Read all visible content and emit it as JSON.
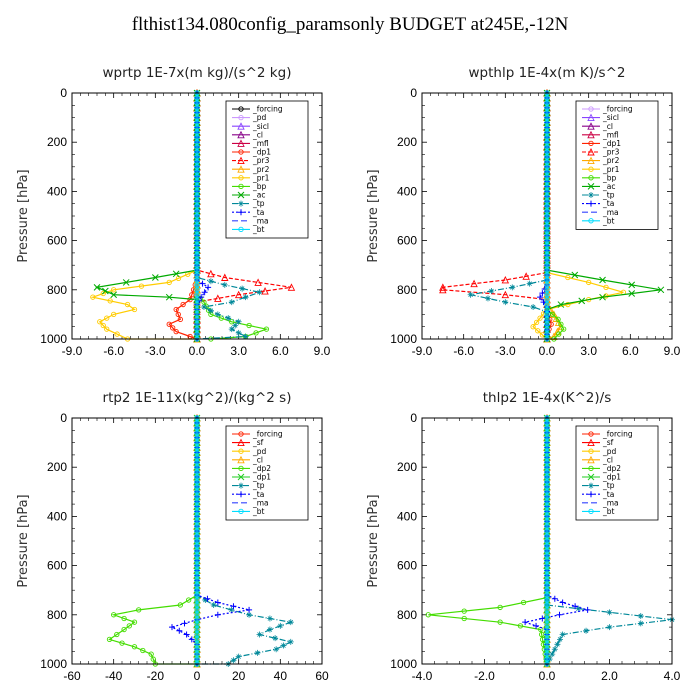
{
  "title": "flthist134.080config_paramsonly  BUDGET at245E,-12N",
  "chart_data": [
    {
      "type": "line",
      "title": "wprtp   1E-7x(m kg)/(s^2 kg)",
      "ylabel": "Pressure [hPa]",
      "xlim": [
        -9,
        9
      ],
      "ylim": [
        1000,
        0
      ],
      "xticks": [
        "-9.0",
        "-6.0",
        "-3.0",
        "0.0",
        "3.0",
        "6.0",
        "9.0"
      ],
      "yticks": [
        "0",
        "200",
        "400",
        "600",
        "800",
        "1000"
      ],
      "grid": false,
      "legend_position": "top-right",
      "series": [
        {
          "name": "_forcing",
          "color": "#000000",
          "marker": "circle",
          "dash": "",
          "x": [
            0,
            0
          ],
          "y": [
            0,
            1000
          ]
        },
        {
          "name": "_pd",
          "color": "#cc99ff",
          "marker": "circle",
          "dash": "",
          "x": [
            0,
            0
          ],
          "y": [
            0,
            1000
          ]
        },
        {
          "name": "_sicl",
          "color": "#8844ff",
          "marker": "triangle",
          "dash": "",
          "x": [
            0,
            0
          ],
          "y": [
            0,
            1000
          ]
        },
        {
          "name": "_cl",
          "color": "#880088",
          "marker": "triangle",
          "dash": "",
          "x": [
            0,
            0
          ],
          "y": [
            0,
            1000
          ]
        },
        {
          "name": "_mfl",
          "color": "#cc0044",
          "marker": "triangle",
          "dash": "",
          "x": [
            0,
            0
          ],
          "y": [
            0,
            1000
          ]
        },
        {
          "name": "_dp1",
          "color": "#ff2200",
          "marker": "circle",
          "dash": "",
          "x": [
            0,
            0,
            -0.5,
            -1.5,
            -1.2,
            -2,
            -1.5,
            -0.5,
            0
          ],
          "y": [
            0,
            760,
            840,
            880,
            920,
            940,
            970,
            990,
            1000
          ]
        },
        {
          "name": "_pr3",
          "color": "#ff0000",
          "marker": "triangle",
          "dash": "4,2",
          "x": [
            0,
            0,
            2,
            6.8,
            3,
            0,
            0
          ],
          "y": [
            0,
            720,
            750,
            790,
            820,
            850,
            1000
          ]
        },
        {
          "name": "_pr2",
          "color": "#ffaa00",
          "marker": "triangle",
          "dash": "",
          "x": [
            0,
            0,
            0,
            0
          ],
          "y": [
            0,
            500,
            800,
            1000
          ]
        },
        {
          "name": "_pr1",
          "color": "#ffcc00",
          "marker": "circle",
          "dash": "",
          "x": [
            0,
            0,
            -2,
            -6,
            -7.5,
            -5,
            -4.5,
            -6,
            -7,
            -6.5,
            -5,
            0
          ],
          "y": [
            0,
            720,
            770,
            800,
            830,
            860,
            880,
            900,
            930,
            960,
            1000,
            1000
          ]
        },
        {
          "name": "_bp",
          "color": "#44dd00",
          "marker": "circle",
          "dash": "",
          "x": [
            0,
            0,
            0.5,
            1,
            2.5,
            5,
            3.5,
            1
          ],
          "y": [
            0,
            820,
            850,
            900,
            930,
            960,
            990,
            1000
          ]
        },
        {
          "name": "_ac",
          "color": "#00aa00",
          "marker": "cross",
          "dash": "",
          "x": [
            0,
            0,
            -3,
            -7.2,
            -6,
            -2,
            0,
            0
          ],
          "y": [
            0,
            720,
            750,
            790,
            820,
            830,
            840,
            1000
          ]
        },
        {
          "name": "_tp",
          "color": "#008899",
          "marker": "star",
          "dash": "6,2,1,2",
          "x": [
            0,
            0,
            2,
            4.5,
            2.5,
            0.5,
            1.5,
            3,
            2.5,
            3.5,
            0
          ],
          "y": [
            0,
            750,
            780,
            810,
            850,
            870,
            900,
            930,
            960,
            990,
            1000
          ]
        },
        {
          "name": "_ta",
          "color": "#0000ff",
          "marker": "plus",
          "dash": "2,2",
          "x": [
            0,
            0,
            0.8,
            0.3,
            0,
            0
          ],
          "y": [
            0,
            760,
            790,
            830,
            860,
            1000
          ]
        },
        {
          "name": "_ma",
          "color": "#3344ff",
          "marker": "",
          "dash": "6,3",
          "x": [
            0,
            0
          ],
          "y": [
            0,
            1000
          ]
        },
        {
          "name": "_bt",
          "color": "#00ddff",
          "marker": "circle",
          "dash": "",
          "x": [
            0,
            0
          ],
          "y": [
            0,
            1000
          ]
        }
      ]
    },
    {
      "type": "line",
      "title": "wpthlp   1E-4x(m K)/s^2",
      "ylabel": "Pressure [hPa]",
      "xlim": [
        -9,
        9
      ],
      "ylim": [
        1000,
        0
      ],
      "xticks": [
        "-9.0",
        "-6.0",
        "-3.0",
        "0.0",
        "3.0",
        "6.0",
        "9.0"
      ],
      "yticks": [
        "0",
        "200",
        "400",
        "600",
        "800",
        "1000"
      ],
      "grid": false,
      "legend_position": "top-right",
      "series": [
        {
          "name": "_forcing",
          "color": "#cc99ff",
          "marker": "circle",
          "dash": "",
          "x": [
            0,
            0
          ],
          "y": [
            0,
            1000
          ]
        },
        {
          "name": "_sicl",
          "color": "#8844ff",
          "marker": "triangle",
          "dash": "",
          "x": [
            0,
            0
          ],
          "y": [
            0,
            1000
          ]
        },
        {
          "name": "_cl",
          "color": "#880088",
          "marker": "triangle",
          "dash": "",
          "x": [
            0,
            0
          ],
          "y": [
            0,
            1000
          ]
        },
        {
          "name": "_mfl",
          "color": "#cc0044",
          "marker": "triangle",
          "dash": "",
          "x": [
            0,
            0
          ],
          "y": [
            0,
            1000
          ]
        },
        {
          "name": "_dp1",
          "color": "#ff2200",
          "marker": "circle",
          "dash": "",
          "x": [
            0,
            0,
            0.3,
            0,
            0
          ],
          "y": [
            0,
            880,
            940,
            980,
            1000
          ]
        },
        {
          "name": "_pr3",
          "color": "#ff0000",
          "marker": "triangle",
          "dash": "4,2",
          "x": [
            0,
            0,
            -3,
            -7.5,
            -7.5,
            -3,
            0,
            0
          ],
          "y": [
            0,
            730,
            760,
            790,
            800,
            820,
            840,
            1000
          ]
        },
        {
          "name": "_pr2",
          "color": "#ffaa00",
          "marker": "triangle",
          "dash": "",
          "x": [
            0,
            0,
            0.5,
            1,
            0.5,
            0
          ],
          "y": [
            0,
            860,
            900,
            950,
            990,
            1000
          ]
        },
        {
          "name": "_pr1",
          "color": "#ffcc00",
          "marker": "circle",
          "dash": "",
          "x": [
            0,
            0,
            3,
            5.5,
            3,
            0,
            -1,
            0
          ],
          "y": [
            0,
            730,
            770,
            810,
            840,
            880,
            950,
            1000
          ]
        },
        {
          "name": "_bp",
          "color": "#44dd00",
          "marker": "circle",
          "dash": "",
          "x": [
            0,
            0,
            0.8,
            1.2,
            0.5
          ],
          "y": [
            0,
            880,
            920,
            960,
            1000
          ]
        },
        {
          "name": "_ac",
          "color": "#00aa00",
          "marker": "cross",
          "dash": "",
          "x": [
            0,
            0,
            4,
            8.2,
            4,
            1,
            0,
            0
          ],
          "y": [
            0,
            720,
            760,
            800,
            830,
            860,
            880,
            1000
          ]
        },
        {
          "name": "_tp",
          "color": "#008899",
          "marker": "star",
          "dash": "6,2,1,2",
          "x": [
            0,
            0,
            -2.5,
            -5.5,
            -3,
            -1,
            0,
            0
          ],
          "y": [
            0,
            760,
            790,
            820,
            850,
            870,
            890,
            1000
          ]
        },
        {
          "name": "_ta",
          "color": "#0000ff",
          "marker": "plus",
          "dash": "2,2",
          "x": [
            0,
            0,
            -0.5,
            0,
            0
          ],
          "y": [
            0,
            780,
            830,
            870,
            1000
          ]
        },
        {
          "name": "_ma",
          "color": "#3344ff",
          "marker": "",
          "dash": "6,3",
          "x": [
            0,
            0
          ],
          "y": [
            0,
            1000
          ]
        },
        {
          "name": "_bt",
          "color": "#00ddff",
          "marker": "circle",
          "dash": "",
          "x": [
            0,
            0
          ],
          "y": [
            0,
            1000
          ]
        }
      ]
    },
    {
      "type": "line",
      "title": "rtp2   1E-11x(kg^2)/(kg^2 s)",
      "ylabel": "Pressure [hPa]",
      "xlim": [
        -60,
        60
      ],
      "ylim": [
        1000,
        0
      ],
      "xticks": [
        "-60",
        "-40",
        "-20",
        "0",
        "20",
        "40",
        "60"
      ],
      "yticks": [
        "0",
        "200",
        "400",
        "600",
        "800",
        "1000"
      ],
      "grid": false,
      "legend_position": "top-right",
      "series": [
        {
          "name": "_forcing",
          "color": "#ff2200",
          "marker": "circle",
          "dash": "",
          "x": [
            0,
            0
          ],
          "y": [
            0,
            1000
          ]
        },
        {
          "name": "_sf",
          "color": "#ff0000",
          "marker": "triangle",
          "dash": "",
          "x": [
            0,
            0
          ],
          "y": [
            0,
            1000
          ]
        },
        {
          "name": "_pd",
          "color": "#ffcc00",
          "marker": "circle",
          "dash": "",
          "x": [
            0,
            0
          ],
          "y": [
            0,
            1000
          ]
        },
        {
          "name": "_cl",
          "color": "#ffaa00",
          "marker": "triangle",
          "dash": "",
          "x": [
            0,
            0
          ],
          "y": [
            0,
            1000
          ]
        },
        {
          "name": "_dp2",
          "color": "#44dd00",
          "marker": "circle",
          "dash": "",
          "x": [
            0,
            0,
            -8,
            -28,
            -40,
            -30,
            -35,
            -42,
            -30,
            -22,
            -20,
            0
          ],
          "y": [
            0,
            720,
            760,
            780,
            800,
            830,
            860,
            900,
            930,
            960,
            1000,
            1000
          ]
        },
        {
          "name": "_dp1",
          "color": "#22cc22",
          "marker": "cross",
          "dash": "",
          "x": [
            0,
            0
          ],
          "y": [
            0,
            1000
          ]
        },
        {
          "name": "_tp",
          "color": "#008899",
          "marker": "star",
          "dash": "6,2,1,2",
          "x": [
            0,
            0,
            8,
            25,
            45,
            35,
            30,
            45,
            38,
            20,
            15,
            0
          ],
          "y": [
            0,
            720,
            760,
            800,
            830,
            860,
            880,
            910,
            940,
            970,
            1000,
            1000
          ]
        },
        {
          "name": "_ta",
          "color": "#0000ff",
          "marker": "plus",
          "dash": "2,2",
          "x": [
            0,
            0,
            10,
            25,
            10,
            0,
            -12,
            -5,
            0,
            0
          ],
          "y": [
            0,
            720,
            750,
            780,
            800,
            820,
            850,
            880,
            920,
            1000
          ]
        },
        {
          "name": "_ma",
          "color": "#3344ff",
          "marker": "",
          "dash": "6,3",
          "x": [
            0,
            0
          ],
          "y": [
            0,
            1000
          ]
        },
        {
          "name": "_bt",
          "color": "#00ddff",
          "marker": "circle",
          "dash": "",
          "x": [
            0,
            0
          ],
          "y": [
            0,
            1000
          ]
        }
      ]
    },
    {
      "type": "line",
      "title": "thlp2   1E-4x(K^2)/s",
      "ylabel": "Pressure [hPa]",
      "xlim": [
        -4,
        4
      ],
      "ylim": [
        1000,
        0
      ],
      "xticks": [
        "-4.0",
        "-2.0",
        "0.0",
        "2.0",
        "4.0"
      ],
      "yticks": [
        "0",
        "200",
        "400",
        "600",
        "800",
        "1000"
      ],
      "grid": false,
      "legend_position": "top-right",
      "series": [
        {
          "name": "_forcing",
          "color": "#ff2200",
          "marker": "circle",
          "dash": "",
          "x": [
            0,
            0
          ],
          "y": [
            0,
            1000
          ]
        },
        {
          "name": "_sf",
          "color": "#ff0000",
          "marker": "triangle",
          "dash": "",
          "x": [
            0,
            0
          ],
          "y": [
            0,
            1000
          ]
        },
        {
          "name": "_pd",
          "color": "#ffcc00",
          "marker": "circle",
          "dash": "",
          "x": [
            0,
            0
          ],
          "y": [
            0,
            1000
          ]
        },
        {
          "name": "_cl",
          "color": "#ffaa00",
          "marker": "triangle",
          "dash": "",
          "x": [
            0,
            0
          ],
          "y": [
            0,
            1000
          ]
        },
        {
          "name": "_dp2",
          "color": "#44dd00",
          "marker": "circle",
          "dash": "",
          "x": [
            0,
            0,
            -1.5,
            -3.8,
            -1.5,
            -0.2,
            0
          ],
          "y": [
            0,
            730,
            770,
            800,
            830,
            860,
            1000
          ]
        },
        {
          "name": "_dp1",
          "color": "#22cc22",
          "marker": "cross",
          "dash": "",
          "x": [
            0,
            0
          ],
          "y": [
            0,
            1000
          ]
        },
        {
          "name": "_tp",
          "color": "#008899",
          "marker": "star",
          "dash": "6,2,1,2",
          "x": [
            0,
            0,
            2,
            4,
            2,
            0.5,
            0
          ],
          "y": [
            0,
            760,
            790,
            820,
            850,
            880,
            1000
          ]
        },
        {
          "name": "_ta",
          "color": "#0000ff",
          "marker": "plus",
          "dash": "2,2",
          "x": [
            0,
            0,
            0.5,
            1.3,
            0.4,
            -0.7,
            0,
            0
          ],
          "y": [
            0,
            720,
            750,
            780,
            800,
            830,
            860,
            1000
          ]
        },
        {
          "name": "_ma",
          "color": "#3344ff",
          "marker": "",
          "dash": "6,3",
          "x": [
            0,
            0
          ],
          "y": [
            0,
            1000
          ]
        },
        {
          "name": "_bt",
          "color": "#00ddff",
          "marker": "circle",
          "dash": "",
          "x": [
            0,
            0
          ],
          "y": [
            0,
            1000
          ]
        }
      ]
    }
  ]
}
